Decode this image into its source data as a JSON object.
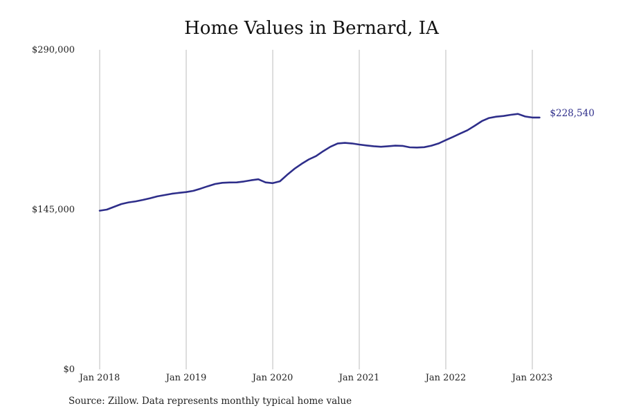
{
  "chart_data": {
    "type": "line",
    "title": "Home Values in Bernard, IA",
    "xlabel": "",
    "ylabel": "",
    "ylim": [
      0,
      290000
    ],
    "y_ticks": [
      {
        "value": 0,
        "label": "$0"
      },
      {
        "value": 145000,
        "label": "$145,000"
      },
      {
        "value": 290000,
        "label": "$290,000"
      }
    ],
    "x_ticks": [
      {
        "value": "2018-01",
        "label": "Jan 2018"
      },
      {
        "value": "2019-01",
        "label": "Jan 2019"
      },
      {
        "value": "2020-01",
        "label": "Jan 2020"
      },
      {
        "value": "2021-01",
        "label": "Jan 2021"
      },
      {
        "value": "2022-01",
        "label": "Jan 2022"
      },
      {
        "value": "2023-01",
        "label": "Jan 2023"
      }
    ],
    "grid": {
      "vertical": true,
      "horizontal": false
    },
    "line_color": "#2e2e8a",
    "grid_color": "#bbbbbb",
    "end_label": "$228,540",
    "series": [
      {
        "x": [
          "2018-01",
          "2018-02",
          "2018-03",
          "2018-04",
          "2018-05",
          "2018-06",
          "2018-07",
          "2018-08",
          "2018-09",
          "2018-10",
          "2018-11",
          "2018-12",
          "2019-01",
          "2019-02",
          "2019-03",
          "2019-04",
          "2019-05",
          "2019-06",
          "2019-07",
          "2019-08",
          "2019-09",
          "2019-10",
          "2019-11",
          "2019-12",
          "2020-01",
          "2020-02",
          "2020-03",
          "2020-04",
          "2020-05",
          "2020-06",
          "2020-07",
          "2020-08",
          "2020-09",
          "2020-10",
          "2020-11",
          "2020-12",
          "2021-01",
          "2021-02",
          "2021-03",
          "2021-04",
          "2021-05",
          "2021-06",
          "2021-07",
          "2021-08",
          "2021-09",
          "2021-10",
          "2021-11",
          "2021-12",
          "2022-01",
          "2022-02",
          "2022-03",
          "2022-04",
          "2022-05",
          "2022-06",
          "2022-07",
          "2022-08",
          "2022-09",
          "2022-10",
          "2022-11",
          "2022-12",
          "2023-01",
          "2023-02"
        ],
        "values": [
          144000,
          145000,
          147500,
          150000,
          151500,
          152500,
          153800,
          155300,
          157000,
          158200,
          159400,
          160200,
          160900,
          162000,
          164000,
          166200,
          168200,
          169300,
          169600,
          169700,
          170500,
          171600,
          172500,
          169700,
          169000,
          170700,
          176500,
          182000,
          186500,
          190500,
          193500,
          198000,
          202000,
          205000,
          205500,
          205000,
          204000,
          203200,
          202500,
          202000,
          202500,
          203000,
          202800,
          201500,
          201300,
          201600,
          203000,
          205000,
          208000,
          211000,
          214000,
          217000,
          221000,
          225300,
          228100,
          229300,
          229900,
          231000,
          231800,
          229500,
          228540,
          228540
        ]
      }
    ],
    "source": "Source: Zillow. Data represents monthly typical home value"
  }
}
